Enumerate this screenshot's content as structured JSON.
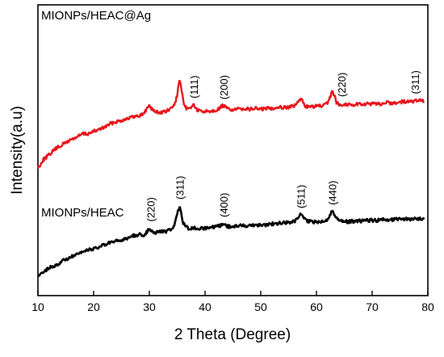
{
  "chart_data": {
    "type": "line",
    "title": "",
    "xlabel": "2 Theta (Degree)",
    "ylabel": "Intensity(a.u)",
    "xlim": [
      10,
      80
    ],
    "ylim": [
      0,
      100
    ],
    "x_ticks": [
      10,
      20,
      30,
      40,
      50,
      60,
      70,
      80
    ],
    "y_ticks_shown": false,
    "grid": false,
    "legend": "none",
    "series": [
      {
        "name": "MIONPs/HEAC@Ag",
        "color": "#e8141b",
        "points": [
          [
            10,
            49
          ],
          [
            11,
            53
          ],
          [
            12,
            55
          ],
          [
            13,
            57.5
          ],
          [
            14,
            59
          ],
          [
            15,
            60.5
          ],
          [
            16,
            62
          ],
          [
            17,
            63
          ],
          [
            18,
            64.5
          ],
          [
            19,
            64.5
          ],
          [
            20,
            65.5
          ],
          [
            21,
            66.5
          ],
          [
            22,
            67.5
          ],
          [
            23,
            69
          ],
          [
            24,
            70
          ],
          [
            25,
            70.5
          ],
          [
            26,
            71.5
          ],
          [
            27,
            72
          ],
          [
            28,
            72.5
          ],
          [
            29,
            73.5
          ],
          [
            29.6,
            76
          ],
          [
            30,
            77.5
          ],
          [
            30.5,
            75.5
          ],
          [
            31,
            74.5
          ],
          [
            32,
            74
          ],
          [
            33,
            74.5
          ],
          [
            34,
            76
          ],
          [
            34.6,
            78
          ],
          [
            35,
            82
          ],
          [
            35.3,
            87
          ],
          [
            35.5,
            88.5
          ],
          [
            35.8,
            84
          ],
          [
            36.2,
            77
          ],
          [
            37,
            75.5
          ],
          [
            37.6,
            77
          ],
          [
            38,
            77.5
          ],
          [
            38.6,
            75
          ],
          [
            39.5,
            74.5
          ],
          [
            40.5,
            74.8
          ],
          [
            41.5,
            75
          ],
          [
            42.5,
            75.5
          ],
          [
            43,
            77
          ],
          [
            43.4,
            77
          ],
          [
            44,
            75.8
          ],
          [
            45,
            75.3
          ],
          [
            46,
            75.5
          ],
          [
            47,
            76
          ],
          [
            48,
            75.5
          ],
          [
            49,
            76
          ],
          [
            50,
            75.5
          ],
          [
            51,
            76
          ],
          [
            52,
            76
          ],
          [
            53,
            76.5
          ],
          [
            54,
            76.5
          ],
          [
            55,
            76.5
          ],
          [
            56,
            77
          ],
          [
            56.6,
            78.5
          ],
          [
            57.2,
            80
          ],
          [
            57.6,
            79
          ],
          [
            58,
            77
          ],
          [
            59,
            76.5
          ],
          [
            60,
            77
          ],
          [
            61,
            77
          ],
          [
            62,
            78
          ],
          [
            62.4,
            80.5
          ],
          [
            62.8,
            83.5
          ],
          [
            63.2,
            82
          ],
          [
            63.6,
            78.5
          ],
          [
            64.5,
            77.5
          ],
          [
            65.5,
            77.8
          ],
          [
            66.5,
            77.5
          ],
          [
            67.5,
            78
          ],
          [
            68.5,
            77.8
          ],
          [
            69.5,
            78
          ],
          [
            70.5,
            77.8
          ],
          [
            71.5,
            78
          ],
          [
            72.5,
            78.5
          ],
          [
            73.5,
            78.3
          ],
          [
            74.5,
            78.5
          ],
          [
            75.5,
            79
          ],
          [
            76.5,
            78.8
          ],
          [
            77.5,
            79.2
          ],
          [
            78.5,
            79.5
          ],
          [
            79.3,
            79
          ]
        ]
      },
      {
        "name": "MIONPs/HEAC",
        "color": "#000000",
        "points": [
          [
            10,
            0
          ],
          [
            11,
            2.5
          ],
          [
            12,
            4
          ],
          [
            13,
            5
          ],
          [
            14,
            6.5
          ],
          [
            15,
            8
          ],
          [
            16,
            9
          ],
          [
            17,
            10
          ],
          [
            18,
            11
          ],
          [
            19,
            12.5
          ],
          [
            20,
            12.5
          ],
          [
            21,
            13.5
          ],
          [
            22,
            14.5
          ],
          [
            23,
            15.5
          ],
          [
            24,
            16
          ],
          [
            25,
            16.5
          ],
          [
            26,
            17.5
          ],
          [
            27,
            18.5
          ],
          [
            28,
            19
          ],
          [
            29,
            19
          ],
          [
            29.6,
            20.5
          ],
          [
            30,
            22
          ],
          [
            30.5,
            20.5
          ],
          [
            31,
            20
          ],
          [
            32,
            20.5
          ],
          [
            33,
            20.5
          ],
          [
            34,
            21.5
          ],
          [
            34.6,
            24
          ],
          [
            35,
            28
          ],
          [
            35.4,
            32
          ],
          [
            35.7,
            29
          ],
          [
            36.1,
            24
          ],
          [
            37,
            22
          ],
          [
            38,
            22
          ],
          [
            39,
            21.8
          ],
          [
            40,
            22
          ],
          [
            41,
            22.2
          ],
          [
            42,
            22.5
          ],
          [
            43,
            23.5
          ],
          [
            43.4,
            24
          ],
          [
            44,
            22.8
          ],
          [
            45,
            22.8
          ],
          [
            46,
            23
          ],
          [
            47,
            23.2
          ],
          [
            48,
            23.2
          ],
          [
            49,
            23.5
          ],
          [
            50,
            23.5
          ],
          [
            51,
            23.5
          ],
          [
            52,
            24
          ],
          [
            53,
            24
          ],
          [
            54,
            24.5
          ],
          [
            55,
            24.5
          ],
          [
            56,
            25
          ],
          [
            56.6,
            26.5
          ],
          [
            57.1,
            28
          ],
          [
            57.6,
            27
          ],
          [
            58,
            25.5
          ],
          [
            59,
            24.8
          ],
          [
            60,
            25
          ],
          [
            61,
            25
          ],
          [
            62,
            26
          ],
          [
            62.4,
            28
          ],
          [
            62.8,
            29.5
          ],
          [
            63.2,
            28.5
          ],
          [
            63.8,
            26
          ],
          [
            65,
            25
          ],
          [
            66,
            25
          ],
          [
            67,
            25.2
          ],
          [
            68,
            25.2
          ],
          [
            69,
            25.5
          ],
          [
            70,
            25.5
          ],
          [
            71,
            25.5
          ],
          [
            72,
            25.8
          ],
          [
            73,
            25.8
          ],
          [
            74,
            26
          ],
          [
            75,
            26
          ],
          [
            76,
            26
          ],
          [
            77,
            26.2
          ],
          [
            78,
            26.2
          ],
          [
            79.3,
            26
          ]
        ]
      }
    ],
    "annotations": [
      {
        "text": "(111)",
        "series": 0,
        "x": 38.0
      },
      {
        "text": "(200)",
        "series": 0,
        "x": 43.3
      },
      {
        "text": "(220)",
        "series": 0,
        "x": 64.5
      },
      {
        "text": "(311)",
        "series": 0,
        "x": 77.7
      },
      {
        "text": "(220)",
        "series": 1,
        "x": 30.2
      },
      {
        "text": "(311)",
        "series": 1,
        "x": 35.4
      },
      {
        "text": "(400)",
        "series": 1,
        "x": 43.3
      },
      {
        "text": "(511)",
        "series": 1,
        "x": 57.2
      },
      {
        "text": "(440)",
        "series": 1,
        "x": 62.8
      }
    ]
  }
}
